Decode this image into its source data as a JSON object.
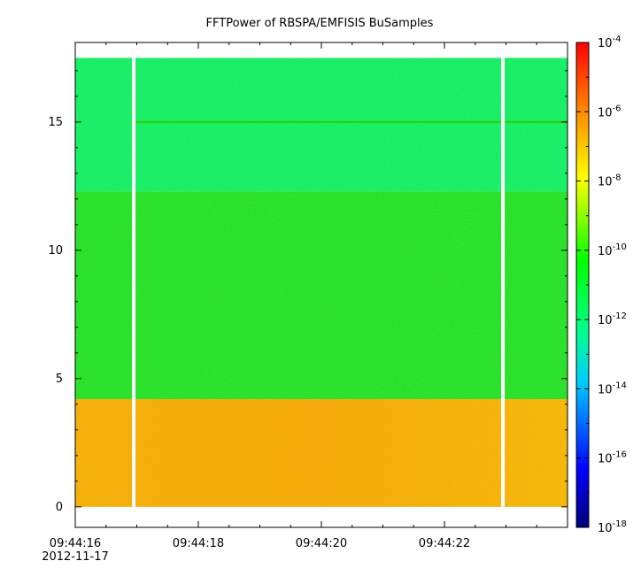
{
  "chart_data": {
    "type": "heatmap",
    "title": "FFTPower of RBSPA/EMFISIS  BuSamples",
    "xlabel": "",
    "ylabel": "",
    "x_range": [
      "09:44:16",
      "09:44:24"
    ],
    "ylim": [
      -0.8,
      18.1
    ],
    "x_ticks": [
      {
        "label": "09:44:16",
        "sublabel": "2012-11-17",
        "value": 0
      },
      {
        "label": "09:44:18",
        "value": 2
      },
      {
        "label": "09:44:20",
        "value": 4
      },
      {
        "label": "09:44:22",
        "value": 6
      }
    ],
    "y_ticks": [
      0,
      5,
      10,
      15
    ],
    "colorbar": {
      "scale": "log",
      "range": [
        1e-18,
        0.0001
      ],
      "ticks": [
        {
          "base": "10",
          "exp": "-4",
          "value": -4
        },
        {
          "base": "10",
          "exp": "-6",
          "value": -6
        },
        {
          "base": "10",
          "exp": "-8",
          "value": -8
        },
        {
          "base": "10",
          "exp": "-10",
          "value": -10
        },
        {
          "base": "10",
          "exp": "-12",
          "value": -12
        },
        {
          "base": "10",
          "exp": "-14",
          "value": -14
        },
        {
          "base": "10",
          "exp": "-16",
          "value": -16
        },
        {
          "base": "10",
          "exp": "-18",
          "value": -18
        }
      ],
      "colormap": [
        "#000080",
        "#0000ff",
        "#00ffff",
        "#00ff00",
        "#ffff00",
        "#ff8000",
        "#ff0000"
      ]
    },
    "bands": [
      {
        "y_range": [
          0,
          4.2
        ],
        "log_power": -7.5,
        "color": "#f5b800"
      },
      {
        "y_range": [
          4.2,
          12.3
        ],
        "log_power": -10.5,
        "color": "#22e022"
      },
      {
        "y_range": [
          12.3,
          17.5
        ],
        "log_power": -11.7,
        "color": "#10ee60"
      }
    ],
    "data_gaps_x": [
      0.95,
      6.95
    ],
    "spectral_line_y": 15.0
  }
}
